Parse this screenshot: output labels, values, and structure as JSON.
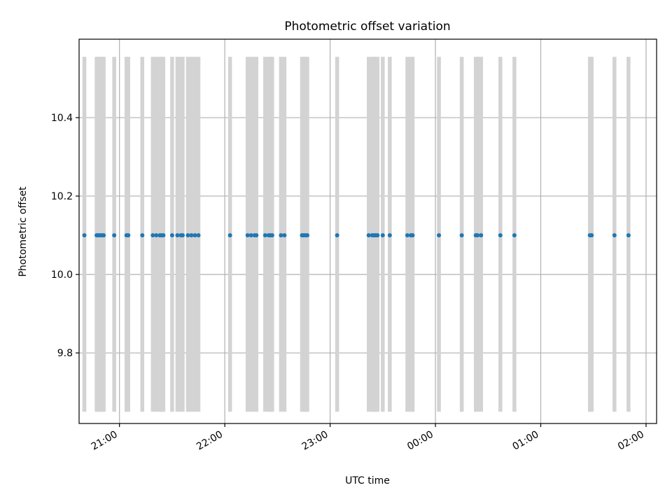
{
  "chart_data": {
    "type": "scatter",
    "title": "Photometric offset variation",
    "xlabel": "UTC time",
    "ylabel": "Photometric offset",
    "x_tick_labels": [
      "21:00",
      "22:00",
      "23:00",
      "00:00",
      "01:00",
      "02:00"
    ],
    "y_ticks": [
      9.8,
      10.0,
      10.2,
      10.4
    ],
    "y_tick_labels": [
      "9.8",
      "10.0",
      "10.2",
      "10.4"
    ],
    "xlim": [
      "20:37",
      "02:06"
    ],
    "ylim": [
      9.62,
      10.6
    ],
    "grid": true,
    "band_color": "#d3d3d3",
    "point_color": "#1f77b4",
    "band_yrange": [
      9.65,
      10.555
    ],
    "band_width_minutes": 2.2,
    "points": [
      {
        "x": "20:40",
        "y": 10.1
      },
      {
        "x": "20:47",
        "y": 10.1
      },
      {
        "x": "20:48",
        "y": 10.1
      },
      {
        "x": "20:49",
        "y": 10.1
      },
      {
        "x": "20:50",
        "y": 10.1
      },
      {
        "x": "20:51",
        "y": 10.1
      },
      {
        "x": "20:57",
        "y": 10.1
      },
      {
        "x": "21:04",
        "y": 10.1
      },
      {
        "x": "21:05",
        "y": 10.1
      },
      {
        "x": "21:13",
        "y": 10.1
      },
      {
        "x": "21:19",
        "y": 10.1
      },
      {
        "x": "21:21",
        "y": 10.1
      },
      {
        "x": "21:23",
        "y": 10.1
      },
      {
        "x": "21:24",
        "y": 10.1
      },
      {
        "x": "21:25",
        "y": 10.1
      },
      {
        "x": "21:30",
        "y": 10.1
      },
      {
        "x": "21:33",
        "y": 10.1
      },
      {
        "x": "21:35",
        "y": 10.1
      },
      {
        "x": "21:36",
        "y": 10.1
      },
      {
        "x": "21:39",
        "y": 10.1
      },
      {
        "x": "21:41",
        "y": 10.1
      },
      {
        "x": "21:43",
        "y": 10.1
      },
      {
        "x": "21:45",
        "y": 10.1
      },
      {
        "x": "22:03",
        "y": 10.1
      },
      {
        "x": "22:13",
        "y": 10.1
      },
      {
        "x": "22:15",
        "y": 10.1
      },
      {
        "x": "22:17",
        "y": 10.1
      },
      {
        "x": "22:18",
        "y": 10.1
      },
      {
        "x": "22:23",
        "y": 10.1
      },
      {
        "x": "22:25",
        "y": 10.1
      },
      {
        "x": "22:26",
        "y": 10.1
      },
      {
        "x": "22:27",
        "y": 10.1
      },
      {
        "x": "22:32",
        "y": 10.1
      },
      {
        "x": "22:34",
        "y": 10.1
      },
      {
        "x": "22:44",
        "y": 10.1
      },
      {
        "x": "22:45",
        "y": 10.1
      },
      {
        "x": "22:46",
        "y": 10.1
      },
      {
        "x": "22:47",
        "y": 10.1
      },
      {
        "x": "23:04",
        "y": 10.1
      },
      {
        "x": "23:22",
        "y": 10.1
      },
      {
        "x": "23:24",
        "y": 10.1
      },
      {
        "x": "23:25",
        "y": 10.1
      },
      {
        "x": "23:26",
        "y": 10.1
      },
      {
        "x": "23:27",
        "y": 10.1
      },
      {
        "x": "23:30",
        "y": 10.1
      },
      {
        "x": "23:34",
        "y": 10.1
      },
      {
        "x": "23:44",
        "y": 10.1
      },
      {
        "x": "23:46",
        "y": 10.1
      },
      {
        "x": "23:47",
        "y": 10.1
      },
      {
        "x": "00:02",
        "y": 10.1
      },
      {
        "x": "00:15",
        "y": 10.1
      },
      {
        "x": "00:23",
        "y": 10.1
      },
      {
        "x": "00:24",
        "y": 10.1
      },
      {
        "x": "00:26",
        "y": 10.1
      },
      {
        "x": "00:37",
        "y": 10.1
      },
      {
        "x": "00:45",
        "y": 10.1
      },
      {
        "x": "01:28",
        "y": 10.1
      },
      {
        "x": "01:29",
        "y": 10.1
      },
      {
        "x": "01:42",
        "y": 10.1
      },
      {
        "x": "01:50",
        "y": 10.1
      }
    ]
  }
}
